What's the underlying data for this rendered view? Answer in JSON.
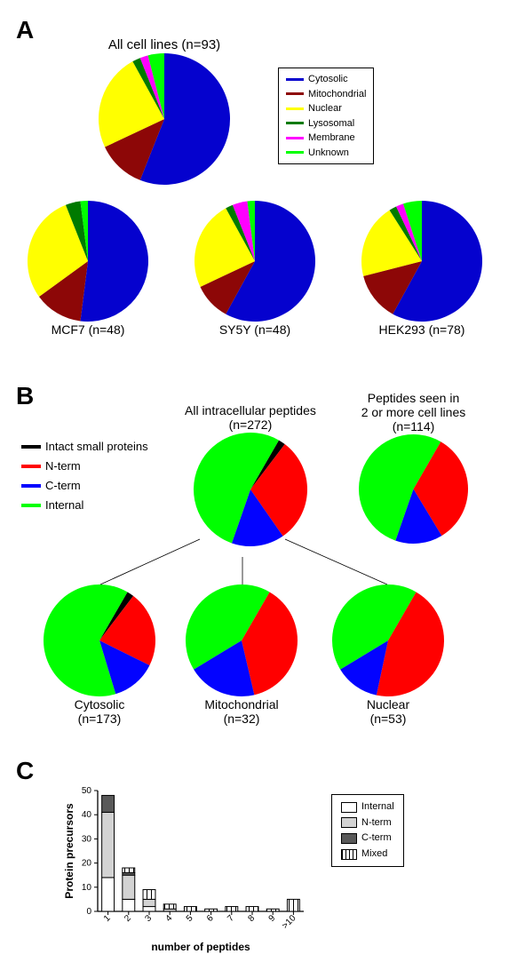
{
  "panelA": {
    "label": "A",
    "charts": {
      "all": {
        "title": "All cell lines (n=93)",
        "slices": [
          {
            "label": "Cytosolic",
            "value": 56,
            "color": "#0502ce"
          },
          {
            "label": "Mitochondrial",
            "value": 12,
            "color": "#8d0707"
          },
          {
            "label": "Nuclear",
            "value": 24,
            "color": "#ffff00"
          },
          {
            "label": "Lysosomal",
            "value": 2,
            "color": "#007a00"
          },
          {
            "label": "Membrane",
            "value": 2,
            "color": "#ff00ff"
          },
          {
            "label": "Unknown",
            "value": 4,
            "color": "#00ff00"
          }
        ]
      },
      "mcf7": {
        "title": "MCF7 (n=48)",
        "slices": [
          {
            "label": "Cytosolic",
            "value": 52,
            "color": "#0502ce"
          },
          {
            "label": "Mitochondrial",
            "value": 13,
            "color": "#8d0707"
          },
          {
            "label": "Nuclear",
            "value": 29,
            "color": "#ffff00"
          },
          {
            "label": "Lysosomal",
            "value": 4,
            "color": "#007a00"
          },
          {
            "label": "Membrane",
            "value": 0,
            "color": "#ff00ff"
          },
          {
            "label": "Unknown",
            "value": 2,
            "color": "#00ff00"
          }
        ]
      },
      "sy5y": {
        "title": "SY5Y (n=48)",
        "slices": [
          {
            "label": "Cytosolic",
            "value": 58,
            "color": "#0502ce"
          },
          {
            "label": "Mitochondrial",
            "value": 10,
            "color": "#8d0707"
          },
          {
            "label": "Nuclear",
            "value": 24,
            "color": "#ffff00"
          },
          {
            "label": "Lysosomal",
            "value": 2,
            "color": "#007a00"
          },
          {
            "label": "Membrane",
            "value": 4,
            "color": "#ff00ff"
          },
          {
            "label": "Unknown",
            "value": 2,
            "color": "#00ff00"
          }
        ]
      },
      "hek": {
        "title": "HEK293 (n=78)",
        "slices": [
          {
            "label": "Cytosolic",
            "value": 58,
            "color": "#0502ce"
          },
          {
            "label": "Mitochondrial",
            "value": 13,
            "color": "#8d0707"
          },
          {
            "label": "Nuclear",
            "value": 20,
            "color": "#ffff00"
          },
          {
            "label": "Lysosomal",
            "value": 2,
            "color": "#007a00"
          },
          {
            "label": "Membrane",
            "value": 2,
            "color": "#ff00ff"
          },
          {
            "label": "Unknown",
            "value": 5,
            "color": "#00ff00"
          }
        ]
      }
    },
    "legend": [
      {
        "label": "Cytosolic",
        "color": "#0502ce"
      },
      {
        "label": "Mitochondrial",
        "color": "#8d0707"
      },
      {
        "label": "Nuclear",
        "color": "#ffff00"
      },
      {
        "label": "Lysosomal",
        "color": "#007a00"
      },
      {
        "label": "Membrane",
        "color": "#ff00ff"
      },
      {
        "label": "Unknown",
        "color": "#00ff00"
      }
    ],
    "pie_start_angle_deg": -90,
    "pie_direction": "cw"
  },
  "panelB": {
    "label": "B",
    "legend": [
      {
        "label": "Intact small proteins",
        "color": "#000000"
      },
      {
        "label": "N-term",
        "color": "#ff0000"
      },
      {
        "label": "C-term",
        "color": "#0303ff"
      },
      {
        "label": "Internal",
        "color": "#00ff00"
      }
    ],
    "charts": {
      "all": {
        "title": "All intracellular peptides",
        "sub": "(n=272)",
        "slices": [
          {
            "value": 2,
            "color": "#000000"
          },
          {
            "value": 30,
            "color": "#ff0000"
          },
          {
            "value": 15,
            "color": "#0303ff"
          },
          {
            "value": 53,
            "color": "#00ff00"
          }
        ]
      },
      "multi": {
        "title": "Peptides seen in",
        "title2": "2 or more cell lines",
        "sub": "(n=114)",
        "slices": [
          {
            "value": 0,
            "color": "#000000"
          },
          {
            "value": 33,
            "color": "#ff0000"
          },
          {
            "value": 14,
            "color": "#0303ff"
          },
          {
            "value": 53,
            "color": "#00ff00"
          }
        ]
      },
      "cyto": {
        "title": "Cytosolic",
        "sub": "(n=173)",
        "slices": [
          {
            "value": 2,
            "color": "#000000"
          },
          {
            "value": 22,
            "color": "#ff0000"
          },
          {
            "value": 13,
            "color": "#0303ff"
          },
          {
            "value": 63,
            "color": "#00ff00"
          }
        ]
      },
      "mito": {
        "title": "Mitochondrial",
        "sub": "(n=32)",
        "slices": [
          {
            "value": 0,
            "color": "#000000"
          },
          {
            "value": 38,
            "color": "#ff0000"
          },
          {
            "value": 20,
            "color": "#0303ff"
          },
          {
            "value": 42,
            "color": "#00ff00"
          }
        ]
      },
      "nuc": {
        "title": "Nuclear",
        "sub": "(n=53)",
        "slices": [
          {
            "value": 0,
            "color": "#000000"
          },
          {
            "value": 45,
            "color": "#ff0000"
          },
          {
            "value": 13,
            "color": "#0303ff"
          },
          {
            "value": 42,
            "color": "#00ff00"
          }
        ]
      }
    },
    "pie_start_angle_deg": -60,
    "pie_direction": "cw"
  },
  "panelC": {
    "label": "C",
    "xlabel": "number of peptides",
    "ylabel": "Protein precursors",
    "ylim": [
      0,
      50
    ],
    "ytick_step": 10,
    "categories": [
      "1",
      "2",
      "3",
      "4",
      "5",
      "6",
      "7",
      "8",
      "9",
      ">10"
    ],
    "series": [
      {
        "label": "Internal",
        "fill": "#ffffff",
        "pattern": "none"
      },
      {
        "label": "N-term",
        "fill": "#d3d3d3",
        "pattern": "none"
      },
      {
        "label": "C-term",
        "fill": "#595959",
        "pattern": "none"
      },
      {
        "label": "Mixed",
        "fill": "#ffffff",
        "pattern": "hatch"
      }
    ],
    "stacks": [
      [
        14,
        27,
        7,
        0
      ],
      [
        5,
        10,
        1,
        2
      ],
      [
        2,
        3,
        0,
        4
      ],
      [
        0,
        1,
        0,
        2
      ],
      [
        0,
        0,
        0,
        2
      ],
      [
        0,
        0,
        0,
        1
      ],
      [
        0,
        0,
        0,
        2
      ],
      [
        0,
        0,
        0,
        2
      ],
      [
        0,
        0,
        0,
        1
      ],
      [
        0,
        0,
        0,
        5
      ]
    ],
    "bar_width": 0.6,
    "axis_color": "#000000",
    "tick_fontsize_pt": 10,
    "label_fontsize_pt": 12,
    "legend_fontsize_pt": 11
  }
}
